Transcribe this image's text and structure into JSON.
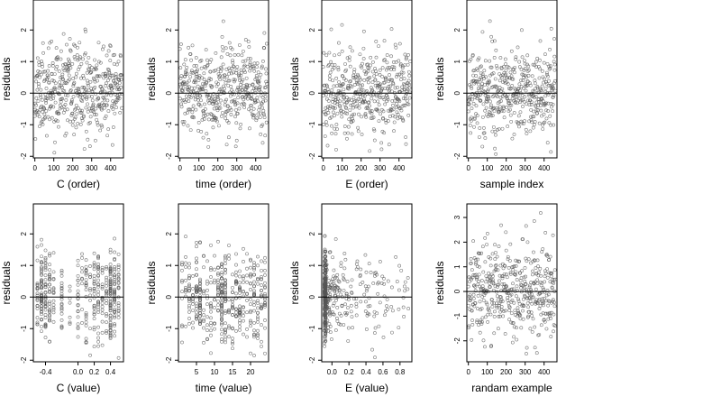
{
  "chart_data": [
    {
      "type": "scatter",
      "xlabel": "C (order)",
      "ylabel": "residuals",
      "xlim": [
        -8,
        468
      ],
      "ylim": [
        -2.05,
        2.95
      ],
      "x_ticks": [
        0,
        100,
        200,
        300,
        400
      ],
      "x_tick_labels": [
        "0",
        "100",
        "200",
        "300",
        "400"
      ],
      "y_ticks": [
        -2,
        -1,
        0,
        1,
        2
      ],
      "y_tick_labels": [
        "-2",
        "-1",
        "0",
        "1",
        "2"
      ],
      "hline": 0,
      "gen": {
        "kind": "order",
        "n": 460,
        "seed": 11,
        "sd": 0.68,
        "mean": 0.05
      }
    },
    {
      "type": "scatter",
      "xlabel": "time (order)",
      "ylabel": "residuals",
      "xlim": [
        -8,
        468
      ],
      "ylim": [
        -2.05,
        2.95
      ],
      "x_ticks": [
        0,
        100,
        200,
        300,
        400
      ],
      "x_tick_labels": [
        "0",
        "100",
        "200",
        "300",
        "400"
      ],
      "y_ticks": [
        -2,
        -1,
        0,
        1,
        2
      ],
      "y_tick_labels": [
        "-2",
        "-1",
        "0",
        "1",
        "2"
      ],
      "hline": 0,
      "gen": {
        "kind": "order",
        "n": 460,
        "seed": 23,
        "sd": 0.68,
        "mean": 0.05
      }
    },
    {
      "type": "scatter",
      "xlabel": "E (order)",
      "ylabel": "residuals",
      "xlim": [
        -8,
        468
      ],
      "ylim": [
        -2.05,
        2.95
      ],
      "x_ticks": [
        0,
        100,
        200,
        300,
        400
      ],
      "x_tick_labels": [
        "0",
        "100",
        "200",
        "300",
        "400"
      ],
      "y_ticks": [
        -2,
        -1,
        0,
        1,
        2
      ],
      "y_tick_labels": [
        "-2",
        "-1",
        "0",
        "1",
        "2"
      ],
      "hline": 0,
      "gen": {
        "kind": "order",
        "n": 460,
        "seed": 37,
        "sd": 0.68,
        "mean": 0.05
      }
    },
    {
      "type": "scatter",
      "xlabel": "sample index",
      "ylabel": "residuals",
      "xlim": [
        -8,
        468
      ],
      "ylim": [
        -2.05,
        2.95
      ],
      "x_ticks": [
        0,
        100,
        200,
        300,
        400
      ],
      "x_tick_labels": [
        "0",
        "100",
        "200",
        "300",
        "400"
      ],
      "y_ticks": [
        -2,
        -1,
        0,
        1,
        2
      ],
      "y_tick_labels": [
        "-2",
        "-1",
        "0",
        "1",
        "2"
      ],
      "hline": 0,
      "gen": {
        "kind": "order",
        "n": 460,
        "seed": 41,
        "sd": 0.68,
        "mean": 0.05
      }
    },
    {
      "type": "scatter",
      "xlabel": "C (value)",
      "ylabel": "residuals",
      "xlim": [
        -0.55,
        0.56
      ],
      "ylim": [
        -2.05,
        2.95
      ],
      "x_ticks": [
        -0.4,
        0.0,
        0.2,
        0.4
      ],
      "x_tick_labels": [
        "-0.4",
        "0.0",
        "0.2",
        "0.4"
      ],
      "y_ticks": [
        -2,
        -1,
        0,
        1,
        2
      ],
      "y_tick_labels": [
        "-2",
        "-1",
        "0",
        "1",
        "2"
      ],
      "hline": 0,
      "gen": {
        "kind": "discrete",
        "n": 460,
        "seed": 53,
        "sd": 0.68,
        "mean": 0.05,
        "values": [
          -0.5,
          -0.45,
          -0.4,
          -0.35,
          -0.3,
          -0.2,
          -0.1,
          0.0,
          0.05,
          0.1,
          0.15,
          0.2,
          0.25,
          0.3,
          0.35,
          0.4,
          0.45,
          0.5
        ],
        "weights": [
          2,
          4,
          3,
          3,
          2,
          2,
          1,
          2,
          1,
          2,
          1,
          2,
          3,
          2,
          2,
          5,
          3,
          2
        ]
      }
    },
    {
      "type": "scatter",
      "xlabel": "time (value)",
      "ylabel": "residuals",
      "xlim": [
        0,
        25
      ],
      "ylim": [
        -2.05,
        2.95
      ],
      "x_ticks": [
        5,
        10,
        15,
        20
      ],
      "x_tick_labels": [
        "5",
        "10",
        "15",
        "20"
      ],
      "y_ticks": [
        -2,
        -1,
        0,
        1,
        2
      ],
      "y_tick_labels": [
        "-2",
        "-1",
        "0",
        "1",
        "2"
      ],
      "hline": 0,
      "gen": {
        "kind": "discrete",
        "n": 460,
        "seed": 67,
        "sd": 0.68,
        "mean": 0.05,
        "values": [
          1,
          2,
          3,
          4,
          5,
          6,
          7,
          8,
          9,
          10,
          11,
          12,
          13,
          14,
          15,
          16,
          17,
          18,
          19,
          20,
          21,
          22,
          23,
          24
        ],
        "weights": [
          1,
          2,
          2,
          2,
          3,
          3,
          2,
          2,
          2,
          2,
          3,
          5,
          3,
          2,
          2,
          2,
          2,
          2,
          2,
          2,
          2,
          2,
          3,
          2
        ]
      }
    },
    {
      "type": "scatter",
      "xlabel": "E (value)",
      "ylabel": "residuals",
      "xlim": [
        -0.12,
        0.94
      ],
      "ylim": [
        -2.05,
        2.95
      ],
      "x_ticks": [
        0.0,
        0.2,
        0.4,
        0.6,
        0.8
      ],
      "x_tick_labels": [
        "0.0",
        "0.2",
        "0.4",
        "0.6",
        "0.8"
      ],
      "y_ticks": [
        -2,
        -1,
        0,
        1,
        2
      ],
      "y_tick_labels": [
        "-2",
        "-1",
        "0",
        "1",
        "2"
      ],
      "hline": 0,
      "gen": {
        "kind": "skew",
        "n": 460,
        "seed": 79,
        "sd": 0.68,
        "mean": 0.05,
        "cluster_x": -0.08,
        "cluster_frac": 0.45,
        "max": 0.9
      }
    },
    {
      "type": "scatter",
      "xlabel": "randam example",
      "ylabel": "residuals",
      "xlim": [
        -8,
        468
      ],
      "ylim": [
        -2.85,
        3.55
      ],
      "x_ticks": [
        0,
        100,
        200,
        300,
        400
      ],
      "x_tick_labels": [
        "0",
        "100",
        "200",
        "300",
        "400"
      ],
      "y_ticks": [
        -2,
        -1,
        0,
        1,
        2,
        3
      ],
      "y_tick_labels": [
        "-2",
        "-1",
        "0",
        "1",
        "2",
        "3"
      ],
      "hline": 0,
      "gen": {
        "kind": "order",
        "n": 460,
        "seed": 97,
        "sd": 0.98,
        "mean": 0.0
      }
    }
  ],
  "colors": {
    "point": "#555555",
    "axis": "#000000",
    "background": "#ffffff"
  }
}
